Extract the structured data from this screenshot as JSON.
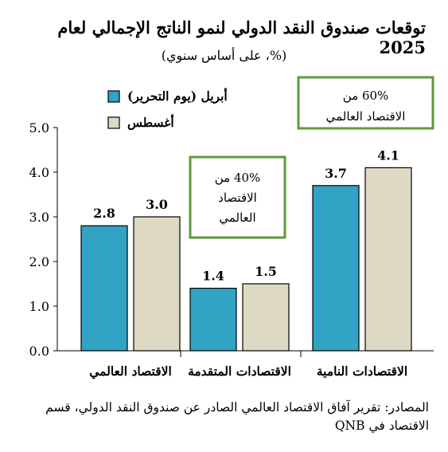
{
  "title": "توقعات صندوق النقد الدولي لنمو الناتج الإجمالي لعام 2025",
  "subtitle": "(%، على أساس سنوي)",
  "source": "المصادر: تقرير آفاق الاقتصاد العالمي الصادر عن صندوق النقد الدولي، قسم الاقتصاد في QNB",
  "chart_data": {
    "type": "bar",
    "categories": [
      "الاقتصاد العالمي",
      "الاقتصادات المتقدمة",
      "الاقتصادات النامية"
    ],
    "series": [
      {
        "name": "أبريل (يوم التحرير)",
        "values": [
          2.8,
          1.4,
          3.7
        ],
        "color": "#31a3c4"
      },
      {
        "name": "أغسطس",
        "values": [
          3.0,
          1.5,
          4.1
        ],
        "color": "#ddd9c3"
      }
    ],
    "ylim": [
      0,
      5
    ],
    "yticks": [
      "0.0",
      "1.0",
      "2.0",
      "3.0",
      "4.0",
      "5.0"
    ],
    "grid": false,
    "legend": "top-left",
    "annotations": [
      {
        "text_lines": [
          "40% من",
          "الاقتصاد",
          "العالمي"
        ],
        "near": "الاقتصادات المتقدمة"
      },
      {
        "text_lines": [
          "60% من",
          "الاقتصاد العالمي"
        ],
        "near": "الاقتصادات النامية"
      }
    ],
    "annotation_border_color": "#5e9a3c"
  }
}
